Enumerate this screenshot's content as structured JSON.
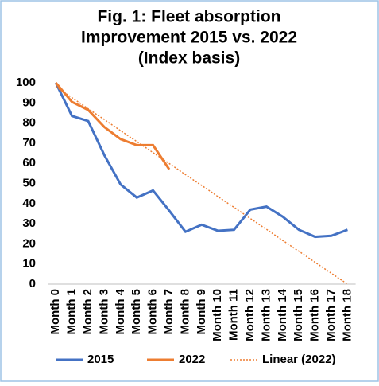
{
  "chart_data": {
    "type": "line",
    "title": [
      "Fig. 1: Fleet absorption",
      "Improvement 2015 vs. 2022",
      "(Index basis)"
    ],
    "categories": [
      "Month 0",
      "Month 1",
      "Month 2",
      "Month 3",
      "Month 4",
      "Month 5",
      "Month 6",
      "Month 7",
      "Month 8",
      "Month 9",
      "Month 10",
      "Month 11",
      "Month 12",
      "Month 13",
      "Month 14",
      "Month 15",
      "Month 16",
      "Month 17",
      "Month 18"
    ],
    "series": [
      {
        "name": "2015",
        "color": "#4472c4",
        "values": [
          100,
          83.5,
          81,
          64,
          49.5,
          43,
          46.5,
          36.5,
          26,
          29.5,
          26.5,
          27,
          37,
          38.5,
          33.5,
          27,
          23.5,
          24,
          27
        ]
      },
      {
        "name": "2022",
        "color": "#ed7d31",
        "values": [
          100,
          90.5,
          86.5,
          78,
          72,
          69,
          69,
          57,
          null,
          null,
          null,
          null,
          null,
          null,
          null,
          null,
          null,
          null,
          null
        ]
      },
      {
        "name": "Linear (2022)",
        "color": "#ed7d31",
        "dashed": true,
        "values": [
          98,
          92.6,
          87.1,
          81.7,
          76.2,
          70.8,
          65.3,
          59.9,
          54.4,
          49,
          43.5,
          38.1,
          32.6,
          27.2,
          21.7,
          16.3,
          10.8,
          5.4,
          0
        ]
      }
    ],
    "ylim": [
      0,
      100
    ],
    "yticks": [
      0,
      10,
      20,
      30,
      40,
      50,
      60,
      70,
      80,
      90,
      100
    ],
    "grid": false,
    "legend": "bottom"
  }
}
